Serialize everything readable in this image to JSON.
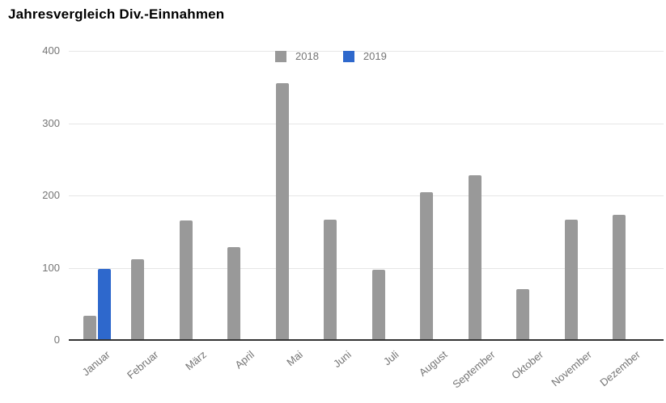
{
  "chart_data": {
    "type": "bar",
    "title": "Jahresvergleich Div.-Einnahmen",
    "categories": [
      "Januar",
      "Februar",
      "März",
      "April",
      "Mai",
      "Juni",
      "Juli",
      "August",
      "September",
      "Oktober",
      "November",
      "Dezember"
    ],
    "series": [
      {
        "name": "2018",
        "color": "#999999",
        "values": [
          33,
          112,
          165,
          129,
          355,
          166,
          97,
          204,
          228,
          70,
          166,
          173
        ]
      },
      {
        "name": "2019",
        "color": "#2e68cc",
        "values": [
          98,
          null,
          null,
          null,
          null,
          null,
          null,
          null,
          null,
          null,
          null,
          null
        ]
      }
    ],
    "xlabel": "",
    "ylabel": "",
    "ylim": [
      0,
      400
    ],
    "yticks": [
      0,
      100,
      200,
      300,
      400
    ],
    "grid": true,
    "legend_position": "top-center"
  },
  "colors": {
    "bar_2018": "#999999",
    "bar_2019": "#2e68cc",
    "gridline": "#e6e6e6",
    "axis_line": "#333333",
    "axis_label": "#757575",
    "title": "#000000",
    "background": "#ffffff"
  }
}
